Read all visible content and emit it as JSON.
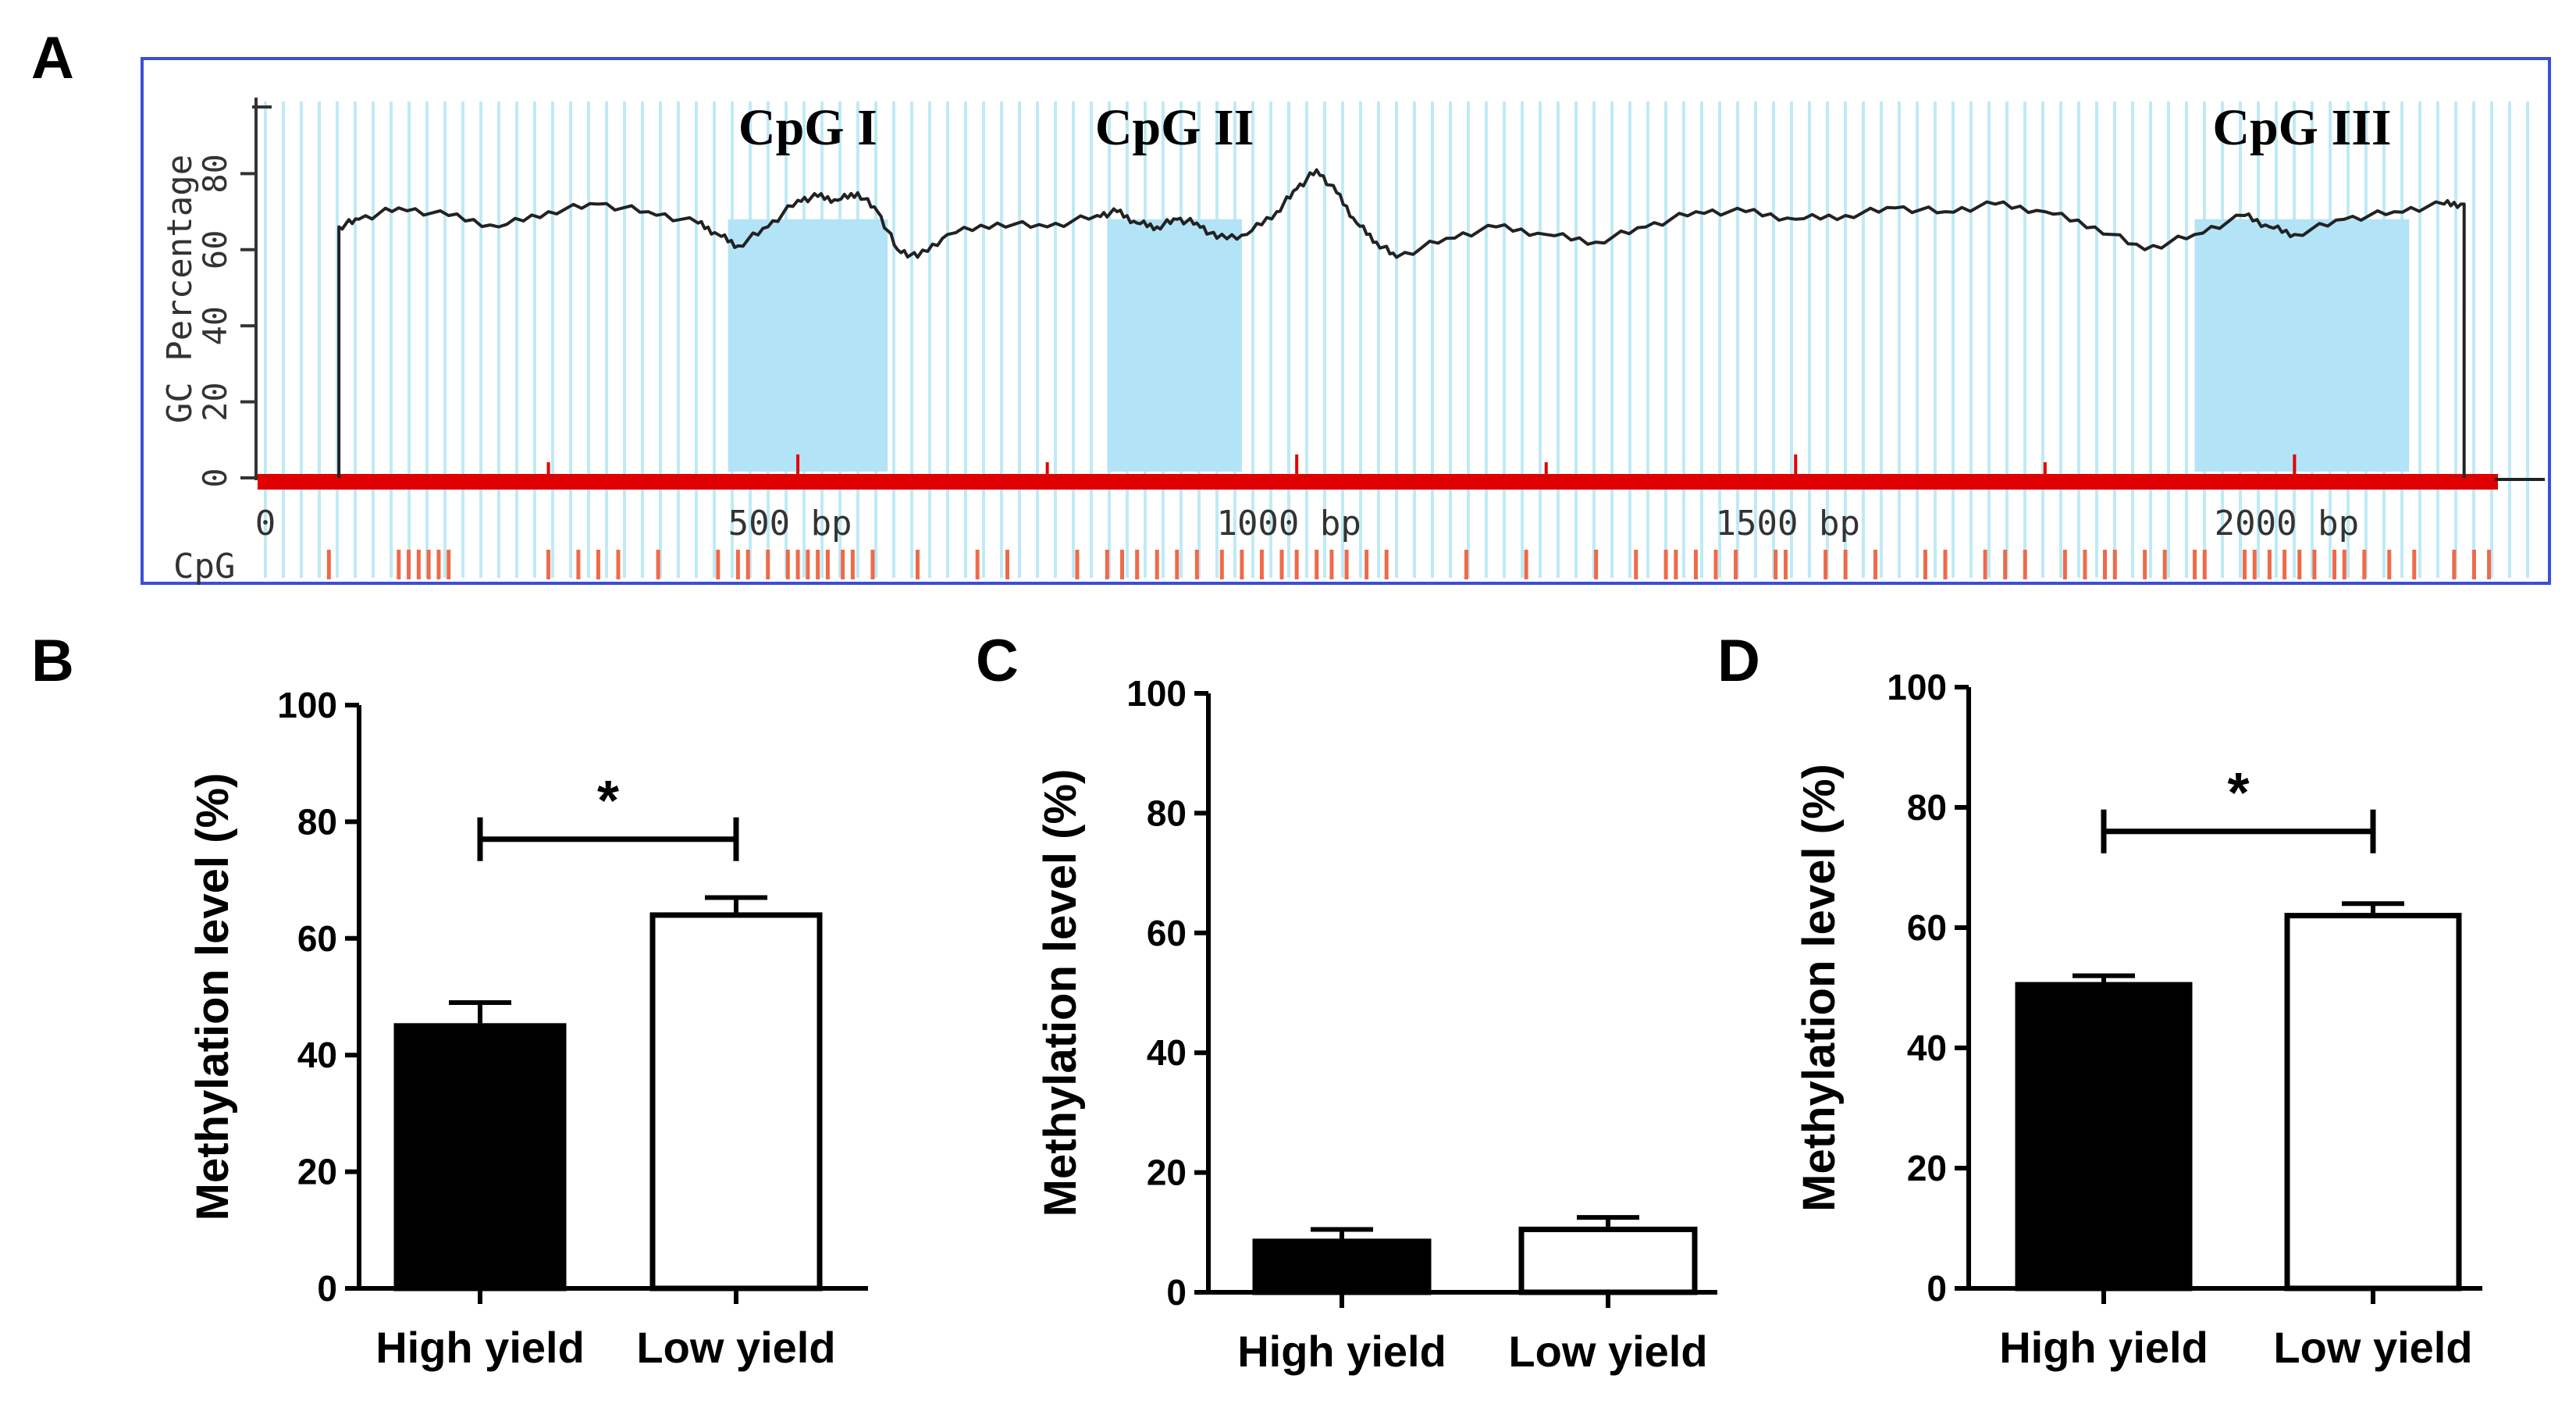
{
  "panels": {
    "a": "A",
    "b": "B",
    "c": "C",
    "d": "D"
  },
  "colors": {
    "frame": "#3b4fd8",
    "stripe": "#bfeaf5",
    "island": "#b3e3f6",
    "axis_red": "#e00000",
    "cpg_tick": "#ef6a4a",
    "bar_high": "#000000",
    "bar_low": "#ffffff"
  },
  "chart_data": [
    {
      "id": "A",
      "type": "line",
      "title": "",
      "ylabel": "GC Percentage",
      "ylim": [
        0,
        100
      ],
      "yticks": [
        "0",
        "20",
        "40",
        "60",
        "80"
      ],
      "xlim": [
        0,
        2200
      ],
      "xticks": [
        {
          "value": 0,
          "label": "0"
        },
        {
          "value": 500,
          "label": "500  bp"
        },
        {
          "value": 1000,
          "label": "1000  bp"
        },
        {
          "value": 1500,
          "label": "1500  bp"
        },
        {
          "value": 2000,
          "label": "2000  bp"
        }
      ],
      "cpg_row_label": "CpG",
      "islands": [
        {
          "label": "CpG I",
          "start": 430,
          "end": 590
        },
        {
          "label": "CpG II",
          "start": 810,
          "end": 945
        },
        {
          "label": "CpG III",
          "start": 1900,
          "end": 2115
        }
      ],
      "gc_profile": {
        "x": [
          40,
          60,
          100,
          150,
          200,
          250,
          300,
          350,
          400,
          420,
          440,
          470,
          500,
          520,
          540,
          560,
          580,
          600,
          620,
          650,
          700,
          750,
          800,
          820,
          840,
          860,
          880,
          900,
          920,
          950,
          980,
          1000,
          1020,
          1040,
          1060,
          1080,
          1100,
          1150,
          1200,
          1250,
          1300,
          1350,
          1400,
          1450,
          1500,
          1550,
          1600,
          1650,
          1700,
          1750,
          1800,
          1850,
          1900,
          1950,
          1975,
          2000,
          2050,
          2100,
          2150,
          2170
        ],
        "y": [
          66,
          68,
          71,
          69,
          66,
          70,
          72,
          70,
          67,
          64,
          61,
          66,
          73,
          74,
          73,
          75,
          70,
          60,
          58,
          64,
          67,
          66,
          69,
          70,
          67,
          66,
          68,
          67,
          63,
          64,
          70,
          76,
          81,
          75,
          67,
          62,
          58,
          63,
          66,
          64,
          62,
          66,
          70,
          70,
          68,
          69,
          71,
          70,
          72,
          70,
          66,
          60,
          64,
          69,
          66,
          64,
          68,
          70,
          72,
          72
        ]
      },
      "cpg_sites": [
        30,
        100,
        110,
        120,
        130,
        140,
        150,
        250,
        280,
        300,
        320,
        360,
        420,
        440,
        450,
        470,
        490,
        500,
        510,
        520,
        530,
        545,
        555,
        575,
        620,
        680,
        710,
        780,
        810,
        825,
        840,
        860,
        880,
        900,
        925,
        945,
        965,
        985,
        1000,
        1020,
        1035,
        1050,
        1070,
        1090,
        1170,
        1230,
        1300,
        1340,
        1370,
        1380,
        1400,
        1420,
        1440,
        1480,
        1490,
        1530,
        1550,
        1580,
        1630,
        1650,
        1690,
        1710,
        1730,
        1770,
        1790,
        1810,
        1820,
        1850,
        1870,
        1900,
        1910,
        1950,
        1960,
        1975,
        1990,
        2005,
        2020,
        2040,
        2050,
        2070,
        2095,
        2120,
        2160,
        2180,
        2195
      ]
    },
    {
      "id": "B",
      "type": "bar",
      "categories": [
        "High yield",
        "Low yield"
      ],
      "values": [
        45,
        64
      ],
      "errors": [
        4,
        3
      ],
      "ylabel": "Methylation level (%)",
      "ylim": [
        0,
        100
      ],
      "yticks": [
        "0",
        "20",
        "40",
        "60",
        "80",
        "100"
      ],
      "significance": {
        "label": "*",
        "level": 77
      }
    },
    {
      "id": "C",
      "type": "bar",
      "categories": [
        "High yield",
        "Low yield"
      ],
      "values": [
        8.5,
        10.5
      ],
      "errors": [
        2,
        2
      ],
      "ylabel": "Methylation level (%)",
      "ylim": [
        0,
        100
      ],
      "yticks": [
        "0",
        "20",
        "40",
        "60",
        "80",
        "100"
      ],
      "significance": null
    },
    {
      "id": "D",
      "type": "bar",
      "categories": [
        "High yield",
        "Low yield"
      ],
      "values": [
        50.5,
        62
      ],
      "errors": [
        1.5,
        2
      ],
      "ylabel": "Methylation level (%)",
      "ylim": [
        0,
        100
      ],
      "yticks": [
        "0",
        "20",
        "40",
        "60",
        "80",
        "100"
      ],
      "significance": {
        "label": "*",
        "level": 76
      }
    }
  ]
}
